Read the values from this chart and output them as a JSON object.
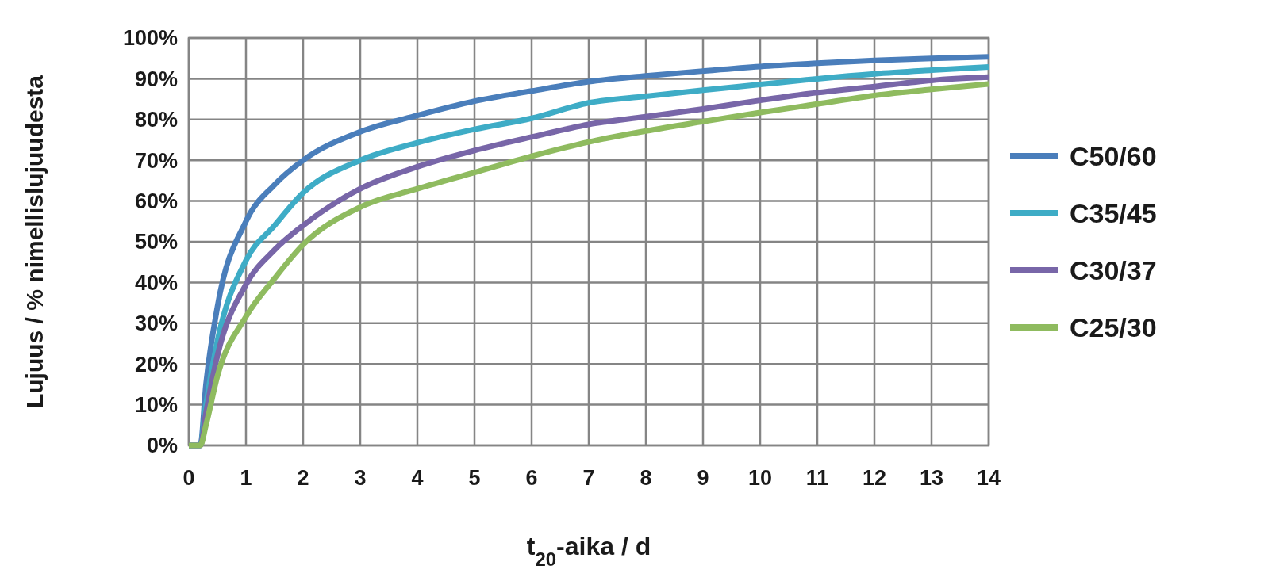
{
  "chart_data": {
    "type": "line",
    "xlabel": "t$_{20}$-aika / d",
    "ylabel": "Lujuus / % nimellislujuudesta",
    "x": [
      0,
      0.2,
      0.3,
      0.5,
      1,
      1.5,
      2,
      3,
      4,
      5,
      6,
      7,
      8,
      9,
      10,
      11,
      12,
      13,
      14
    ],
    "series": [
      {
        "name": "C50/60",
        "color": "#4a7ebb",
        "values": [
          0,
          0,
          15,
          34,
          55,
          64,
          70,
          77,
          81,
          84.5,
          87,
          89.3,
          90.7,
          91.9,
          93,
          93.8,
          94.5,
          95,
          95.4
        ]
      },
      {
        "name": "C35/45",
        "color": "#3eacc6",
        "values": [
          0,
          0,
          10,
          25.6,
          45.4,
          54,
          62,
          70,
          74.3,
          77.6,
          80.3,
          84.1,
          85.7,
          87.2,
          88.6,
          90,
          91.2,
          92.1,
          92.9
        ]
      },
      {
        "name": "C30/37",
        "color": "#7866a8",
        "values": [
          0,
          0,
          8,
          22,
          39.5,
          48,
          54,
          63,
          68.4,
          72.4,
          75.7,
          78.8,
          80.7,
          82.6,
          84.7,
          86.6,
          88.1,
          89.6,
          90.4
        ]
      },
      {
        "name": "C25/30",
        "color": "#8fbb5f",
        "values": [
          0,
          0,
          5,
          17,
          31.6,
          41,
          49.3,
          58.5,
          63,
          67,
          71,
          74.5,
          77.2,
          79.5,
          81.7,
          83.8,
          85.9,
          87.4,
          88.7
        ]
      }
    ],
    "xlim": [
      0,
      14
    ],
    "xticks": [
      0,
      1,
      2,
      3,
      4,
      5,
      6,
      7,
      8,
      9,
      10,
      11,
      12,
      13,
      14
    ],
    "ylim": [
      0,
      100
    ],
    "yticks": [
      {
        "value": 0,
        "label": "0%"
      },
      {
        "value": 10,
        "label": "10%"
      },
      {
        "value": 20,
        "label": "20%"
      },
      {
        "value": 30,
        "label": "30%"
      },
      {
        "value": 40,
        "label": "40%"
      },
      {
        "value": 50,
        "label": "50%"
      },
      {
        "value": 60,
        "label": "60%"
      },
      {
        "value": 70,
        "label": "70%"
      },
      {
        "value": 80,
        "label": "80%"
      },
      {
        "value": 90,
        "label": "90%"
      },
      {
        "value": 100,
        "label": "100%"
      }
    ],
    "grid": true,
    "legend": "right",
    "marker": "none",
    "line_style": "solid"
  }
}
